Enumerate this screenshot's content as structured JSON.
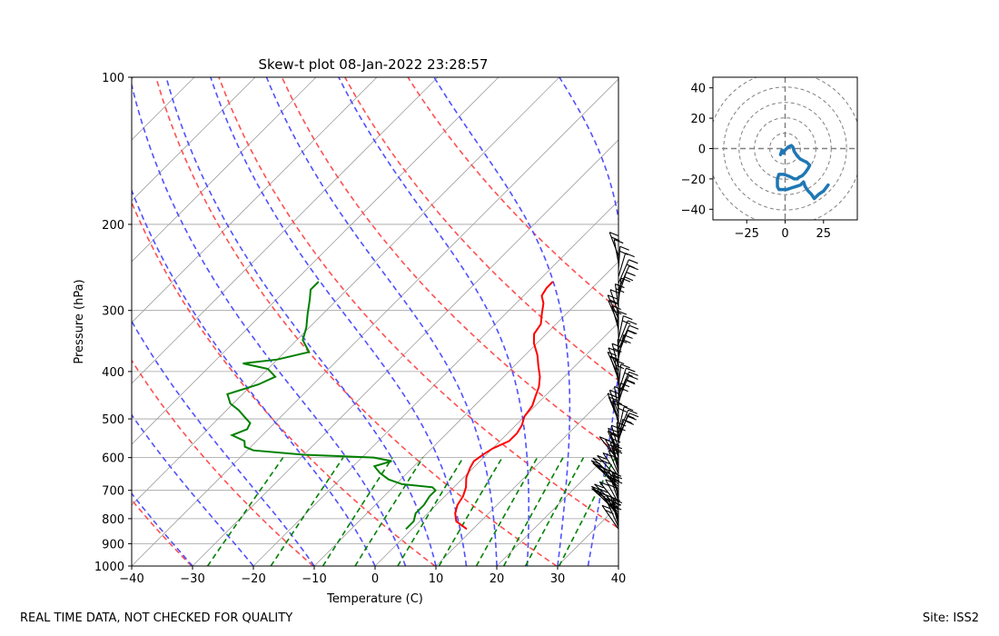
{
  "footer": {
    "disclaimer": "REAL TIME DATA, NOT CHECKED FOR QUALITY",
    "site": "Site: ISS2"
  },
  "colors": {
    "temperature": "#ff0000",
    "dewpoint": "#008000",
    "dry_adiabat": "#ff5050",
    "moist_adiabat": "#5050ff",
    "mixing_ratio": "#008000",
    "hodograph": "#1f77b4",
    "grid": "#a0a0a0"
  },
  "chart_data": [
    {
      "type": "skew-t",
      "title": "Skew-t plot 08-Jan-2022 23:28:57",
      "xlabel": "Temperature (C)",
      "ylabel": "Pressure (hPa)",
      "xlim": [
        -40,
        40
      ],
      "ylim": [
        1000,
        100
      ],
      "x_ticks": [
        "−40",
        "−30",
        "−20",
        "−10",
        "0",
        "10",
        "20",
        "30",
        "40"
      ],
      "x_tick_values": [
        -40,
        -30,
        -20,
        -10,
        0,
        10,
        20,
        30,
        40
      ],
      "y_ticks": [
        "100",
        "200",
        "300",
        "400",
        "500",
        "600",
        "700",
        "800",
        "900",
        "1000"
      ],
      "y_tick_values": [
        100,
        200,
        300,
        400,
        500,
        600,
        700,
        800,
        900,
        1000
      ],
      "temperature": {
        "name": "Temperature",
        "points": [
          [
            840,
            9.0
          ],
          [
            810,
            6.0
          ],
          [
            780,
            4.5
          ],
          [
            750,
            3.5
          ],
          [
            720,
            3.0
          ],
          [
            690,
            2.0
          ],
          [
            660,
            0.5
          ],
          [
            630,
            -0.5
          ],
          [
            610,
            -1.0
          ],
          [
            590,
            -0.5
          ],
          [
            575,
            0.0
          ],
          [
            555,
            1.5
          ],
          [
            535,
            1.5
          ],
          [
            515,
            1.0
          ],
          [
            495,
            0.0
          ],
          [
            470,
            -0.5
          ],
          [
            450,
            -1.5
          ],
          [
            430,
            -2.5
          ],
          [
            410,
            -4.0
          ],
          [
            390,
            -6.0
          ],
          [
            370,
            -8.0
          ],
          [
            350,
            -10.5
          ],
          [
            335,
            -12.0
          ],
          [
            320,
            -12.5
          ],
          [
            305,
            -14.0
          ],
          [
            290,
            -15.5
          ],
          [
            280,
            -17.0
          ],
          [
            270,
            -17.5
          ],
          [
            262,
            -17.5
          ]
        ]
      },
      "dewpoint": {
        "name": "Dewpoint",
        "points": [
          [
            840,
            -1.0
          ],
          [
            810,
            -1.0
          ],
          [
            780,
            -2.0
          ],
          [
            750,
            -2.0
          ],
          [
            720,
            -2.5
          ],
          [
            700,
            -2.5
          ],
          [
            690,
            -3.5
          ],
          [
            680,
            -9.0
          ],
          [
            665,
            -12.0
          ],
          [
            645,
            -14.5
          ],
          [
            625,
            -16.5
          ],
          [
            610,
            -14.5
          ],
          [
            600,
            -18.0
          ],
          [
            592,
            -30.0
          ],
          [
            580,
            -39.0
          ],
          [
            570,
            -41.0
          ],
          [
            555,
            -42.0
          ],
          [
            540,
            -45.0
          ],
          [
            525,
            -43.5
          ],
          [
            510,
            -44.0
          ],
          [
            495,
            -46.0
          ],
          [
            480,
            -48.0
          ],
          [
            465,
            -50.5
          ],
          [
            445,
            -52.5
          ],
          [
            425,
            -49.0
          ],
          [
            410,
            -47.5
          ],
          [
            395,
            -50.0
          ],
          [
            385,
            -55.0
          ],
          [
            378,
            -50.0
          ],
          [
            365,
            -46.0
          ],
          [
            345,
            -49.0
          ],
          [
            325,
            -50.5
          ],
          [
            305,
            -52.5
          ],
          [
            285,
            -54.5
          ],
          [
            272,
            -56.0
          ],
          [
            262,
            -56.0
          ]
        ]
      },
      "wind_barbs_pressure_range": [
        840,
        228
      ],
      "wind_barbs_x": 40,
      "dry_adiabats_theta_K": [
        243,
        263,
        283,
        303,
        323,
        343,
        363,
        383
      ],
      "moist_adiabats_theta_w_C": [
        -30,
        -20,
        -10,
        0,
        5,
        10,
        15,
        20,
        25,
        30,
        35
      ],
      "mixing_ratios_g_per_kg": [
        0.4,
        1,
        2,
        3,
        5,
        8,
        12,
        16,
        20,
        28
      ]
    },
    {
      "type": "hodograph",
      "xlim": [
        -47,
        47
      ],
      "ylim": [
        -47,
        47
      ],
      "x_ticks": [
        "−25",
        "0",
        "25"
      ],
      "x_tick_values": [
        -25,
        0,
        25
      ],
      "y_ticks": [
        "40",
        "20",
        "0",
        "−20",
        "−40"
      ],
      "y_tick_values": [
        40,
        20,
        0,
        -20,
        -40
      ],
      "rings": [
        10,
        20,
        30,
        40,
        50
      ],
      "series": {
        "name": "Wind",
        "u": [
          -1,
          -2,
          -3,
          -2,
          -1,
          0,
          1,
          2,
          4,
          5,
          6,
          8,
          10,
          12,
          14,
          15,
          16,
          15,
          13,
          11,
          9,
          8,
          6,
          4,
          2,
          -1,
          -4,
          -5,
          -5,
          -4,
          -2,
          1,
          4,
          7,
          10,
          12,
          13,
          15,
          17,
          19,
          20,
          22,
          25,
          28
        ],
        "v": [
          -3,
          -2,
          -4,
          -1,
          -2,
          -1,
          0,
          1,
          2,
          1,
          -2,
          -5,
          -7,
          -8,
          -9,
          -10,
          -11,
          -13,
          -16,
          -18,
          -19,
          -20,
          -20,
          -19,
          -18,
          -17,
          -17,
          -20,
          -25,
          -27,
          -27,
          -27,
          -26,
          -25,
          -24,
          -22,
          -25,
          -28,
          -30,
          -33,
          -32,
          -30,
          -28,
          -24
        ]
      }
    }
  ]
}
